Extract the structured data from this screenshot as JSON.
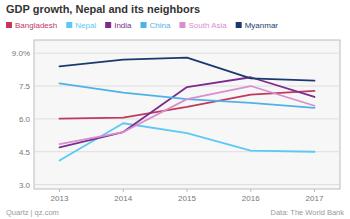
{
  "chart_data": {
    "type": "line",
    "title": "GDP growth, Nepal and its neighbors",
    "annotations": [
      "Quartz | qz.com",
      "Data: The World Bank"
    ],
    "x": [
      2013,
      2014,
      2015,
      2016,
      2017
    ],
    "xlim": [
      2012.6,
      2017.4
    ],
    "xticks": [
      2013,
      2014,
      2015,
      2016,
      2017
    ],
    "ylim": [
      2.8,
      9.6
    ],
    "yticks": [
      {
        "value": 3.0,
        "label": "3.0"
      },
      4.5,
      {
        "value": 6.0,
        "label": "6.0"
      },
      7.5,
      {
        "value": 9.0,
        "label": "9.0%"
      }
    ],
    "grid": true,
    "legend": "top",
    "series": [
      {
        "name": "Bangladesh",
        "color": "#c0395e",
        "values": [
          6.01,
          6.06,
          6.55,
          7.11,
          7.28
        ]
      },
      {
        "name": "Nepal",
        "color": "#5bc8f5",
        "values": [
          4.1,
          5.8,
          5.35,
          4.55,
          4.5
        ]
      },
      {
        "name": "India",
        "color": "#7b2d8b",
        "values": [
          4.7,
          5.4,
          7.45,
          7.9,
          7.0
        ]
      },
      {
        "name": "China",
        "color": "#4db3e6",
        "values": [
          7.62,
          7.2,
          6.9,
          6.73,
          6.5
        ]
      },
      {
        "name": "South Asia",
        "color": "#d98ecf",
        "values": [
          4.85,
          5.4,
          6.9,
          7.5,
          6.6
        ]
      },
      {
        "name": "Myanmar",
        "color": "#1a3a6e",
        "values": [
          8.4,
          8.7,
          8.8,
          7.85,
          7.75
        ]
      }
    ]
  }
}
